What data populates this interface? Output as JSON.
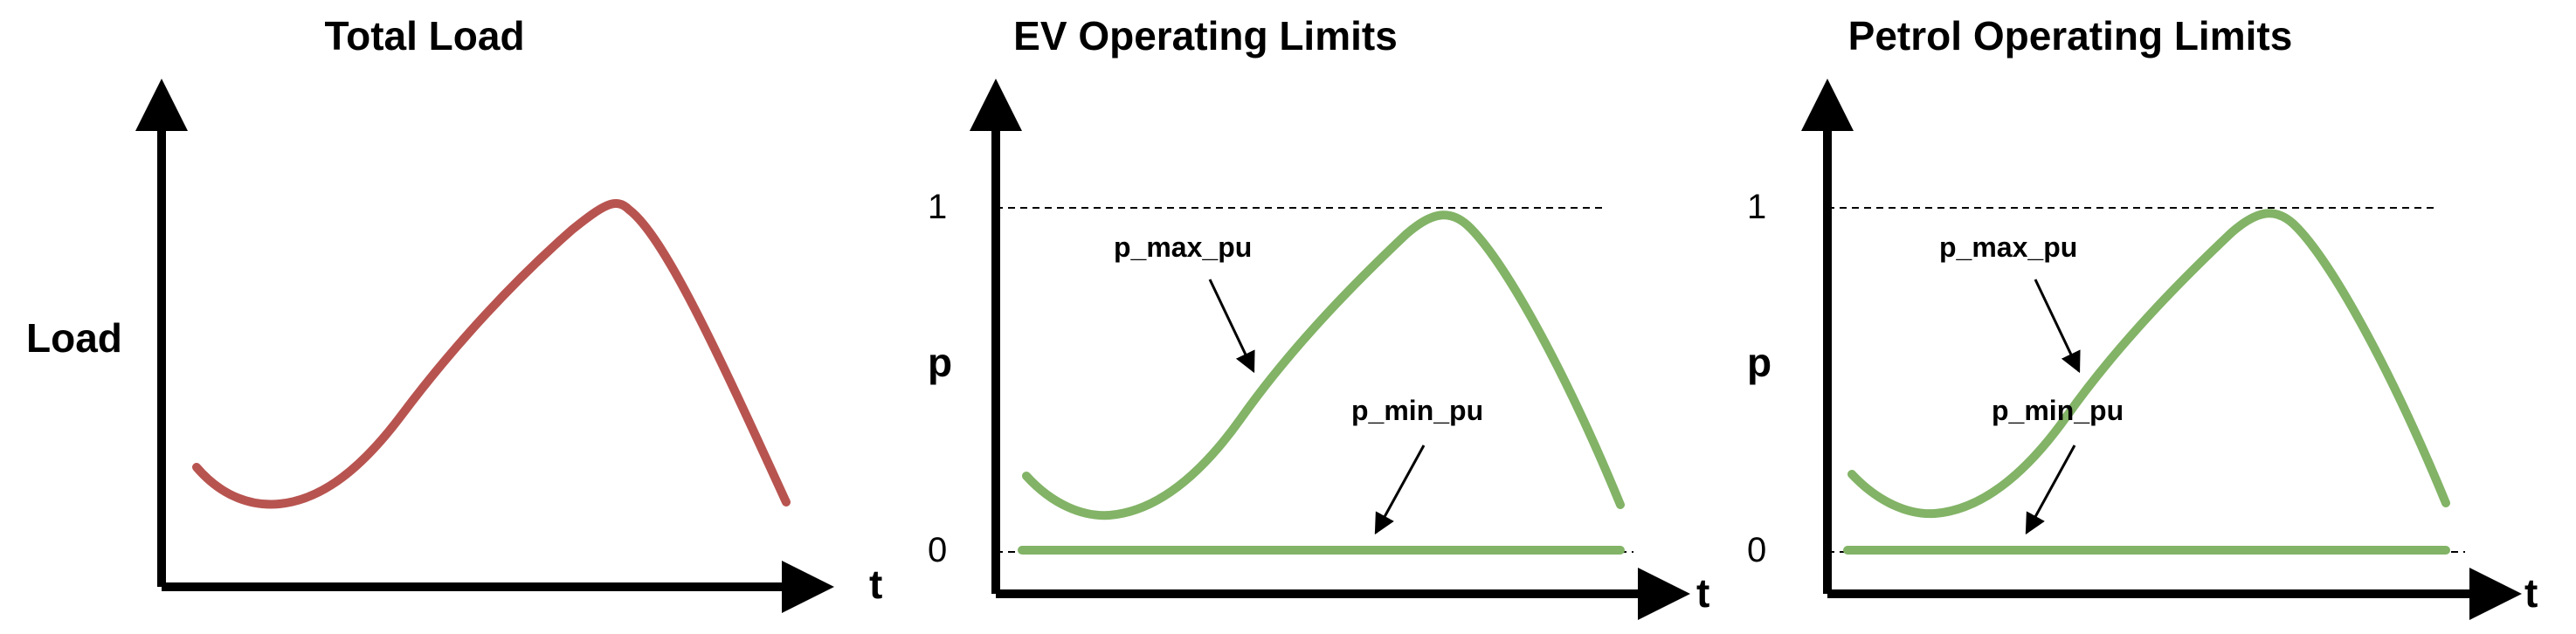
{
  "panels": [
    {
      "title": "Total Load",
      "ylabel": "Load",
      "xlabel": "t",
      "curve_color": "#b85450"
    },
    {
      "title": "EV Operating Limits",
      "ylabel": "p",
      "xlabel": "t",
      "ytick_top": "1",
      "ytick_bottom": "0",
      "max_label": "p_max_pu",
      "min_label": "p_min_pu",
      "curve_color": "#82b366"
    },
    {
      "title": "Petrol Operating Limits",
      "ylabel": "p",
      "xlabel": "t",
      "ytick_top": "1",
      "ytick_bottom": "0",
      "max_label": "p_max_pu",
      "min_label": "p_min_pu",
      "curve_color": "#82b366"
    }
  ]
}
